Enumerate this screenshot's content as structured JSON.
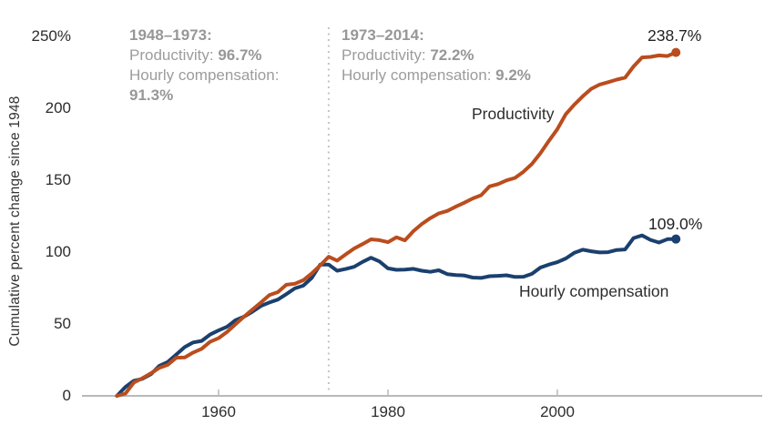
{
  "colors": {
    "productivity_line": "#ba4d1e",
    "compensation_line": "#1b406e",
    "axis": "#b9b9b9",
    "divider": "#c4c4c4",
    "annotation_text": "#9c9c9c",
    "label_text": "#2d2d2d"
  },
  "labels": {
    "y_axis_title": "Cumulative percent change since 1948",
    "productivity_line": "Productivity",
    "compensation_line": "Hourly compensation",
    "productivity_end": "238.7%",
    "compensation_end": "109.0%"
  },
  "annotations": {
    "period1": {
      "heading": "1948–1973:",
      "productivity_label": "Productivity:",
      "productivity_value": "96.7%",
      "compensation_label": "Hourly compensation:",
      "compensation_value": "91.3%"
    },
    "period2": {
      "heading": "1973–2014:",
      "productivity_label": "Productivity:",
      "productivity_value": "72.2%",
      "compensation_label": "Hourly compensation:",
      "compensation_value": "9.2%"
    }
  },
  "chart_data": {
    "type": "line",
    "title": "",
    "xlabel": "",
    "ylabel": "Cumulative percent change since 1948",
    "xlim": [
      1948,
      2014
    ],
    "ylim": [
      0,
      250
    ],
    "grid": false,
    "legend_position": "inline-labels",
    "x_ticks": [
      1960,
      1980,
      2000
    ],
    "y_ticks": [
      0,
      50,
      100,
      150,
      200,
      250
    ],
    "y_tick_labels": [
      "0",
      "50",
      "100",
      "150",
      "200",
      "250%"
    ],
    "divider_year": 1973,
    "x": [
      1948,
      1949,
      1950,
      1951,
      1952,
      1953,
      1954,
      1955,
      1956,
      1957,
      1958,
      1959,
      1960,
      1961,
      1962,
      1963,
      1964,
      1965,
      1966,
      1967,
      1968,
      1969,
      1970,
      1971,
      1972,
      1973,
      1974,
      1975,
      1976,
      1977,
      1978,
      1979,
      1980,
      1981,
      1982,
      1983,
      1984,
      1985,
      1986,
      1987,
      1988,
      1989,
      1990,
      1991,
      1992,
      1993,
      1994,
      1995,
      1996,
      1997,
      1998,
      1999,
      2000,
      2001,
      2002,
      2003,
      2004,
      2005,
      2006,
      2007,
      2008,
      2009,
      2010,
      2011,
      2012,
      2013,
      2014
    ],
    "series": [
      {
        "name": "Productivity",
        "color": "#ba4d1e",
        "end_label": "238.7%",
        "end_value": 238.7,
        "values": [
          0.0,
          1.6,
          9.3,
          12.3,
          15.6,
          19.5,
          21.6,
          26.5,
          26.7,
          30.1,
          32.7,
          37.6,
          40.1,
          44.4,
          49.8,
          55.0,
          60.0,
          64.9,
          70.0,
          72.1,
          77.2,
          77.9,
          80.4,
          85.1,
          90.7,
          96.7,
          94.0,
          98.3,
          102.4,
          105.5,
          108.8,
          108.2,
          106.8,
          110.2,
          108.1,
          114.5,
          119.5,
          123.5,
          126.8,
          128.5,
          131.5,
          134.2,
          137.2,
          139.5,
          145.6,
          147.2,
          149.8,
          151.5,
          155.8,
          161.2,
          168.6,
          177.2,
          185.4,
          195.8,
          202.4,
          208.2,
          213.4,
          216.4,
          218.0,
          219.8,
          221.2,
          229.0,
          235.2,
          235.6,
          236.6,
          236.2,
          238.7
        ]
      },
      {
        "name": "Hourly compensation",
        "color": "#1b406e",
        "end_label": "109.0%",
        "end_value": 109.0,
        "values": [
          0.0,
          6.2,
          10.5,
          11.8,
          15.0,
          20.8,
          23.5,
          28.7,
          33.9,
          37.1,
          38.2,
          42.6,
          45.5,
          48.0,
          52.6,
          55.0,
          58.5,
          62.5,
          64.9,
          66.9,
          70.7,
          74.7,
          76.6,
          82.0,
          91.2,
          91.3,
          87.0,
          88.2,
          89.7,
          93.1,
          96.0,
          93.4,
          88.6,
          87.6,
          87.8,
          88.3,
          87.0,
          86.2,
          87.3,
          84.6,
          84.0,
          83.7,
          82.2,
          82.0,
          83.2,
          83.4,
          83.8,
          82.7,
          82.8,
          84.8,
          89.2,
          91.3,
          92.9,
          95.5,
          99.4,
          101.6,
          100.5,
          99.7,
          99.9,
          101.4,
          101.8,
          109.7,
          111.5,
          108.4,
          106.6,
          108.9,
          109.0
        ]
      }
    ],
    "period_annotations": [
      {
        "period": "1948–1973",
        "productivity_growth": "96.7%",
        "hourly_compensation_growth": "91.3%"
      },
      {
        "period": "1973–2014",
        "productivity_growth": "72.2%",
        "hourly_compensation_growth": "9.2%"
      }
    ]
  }
}
